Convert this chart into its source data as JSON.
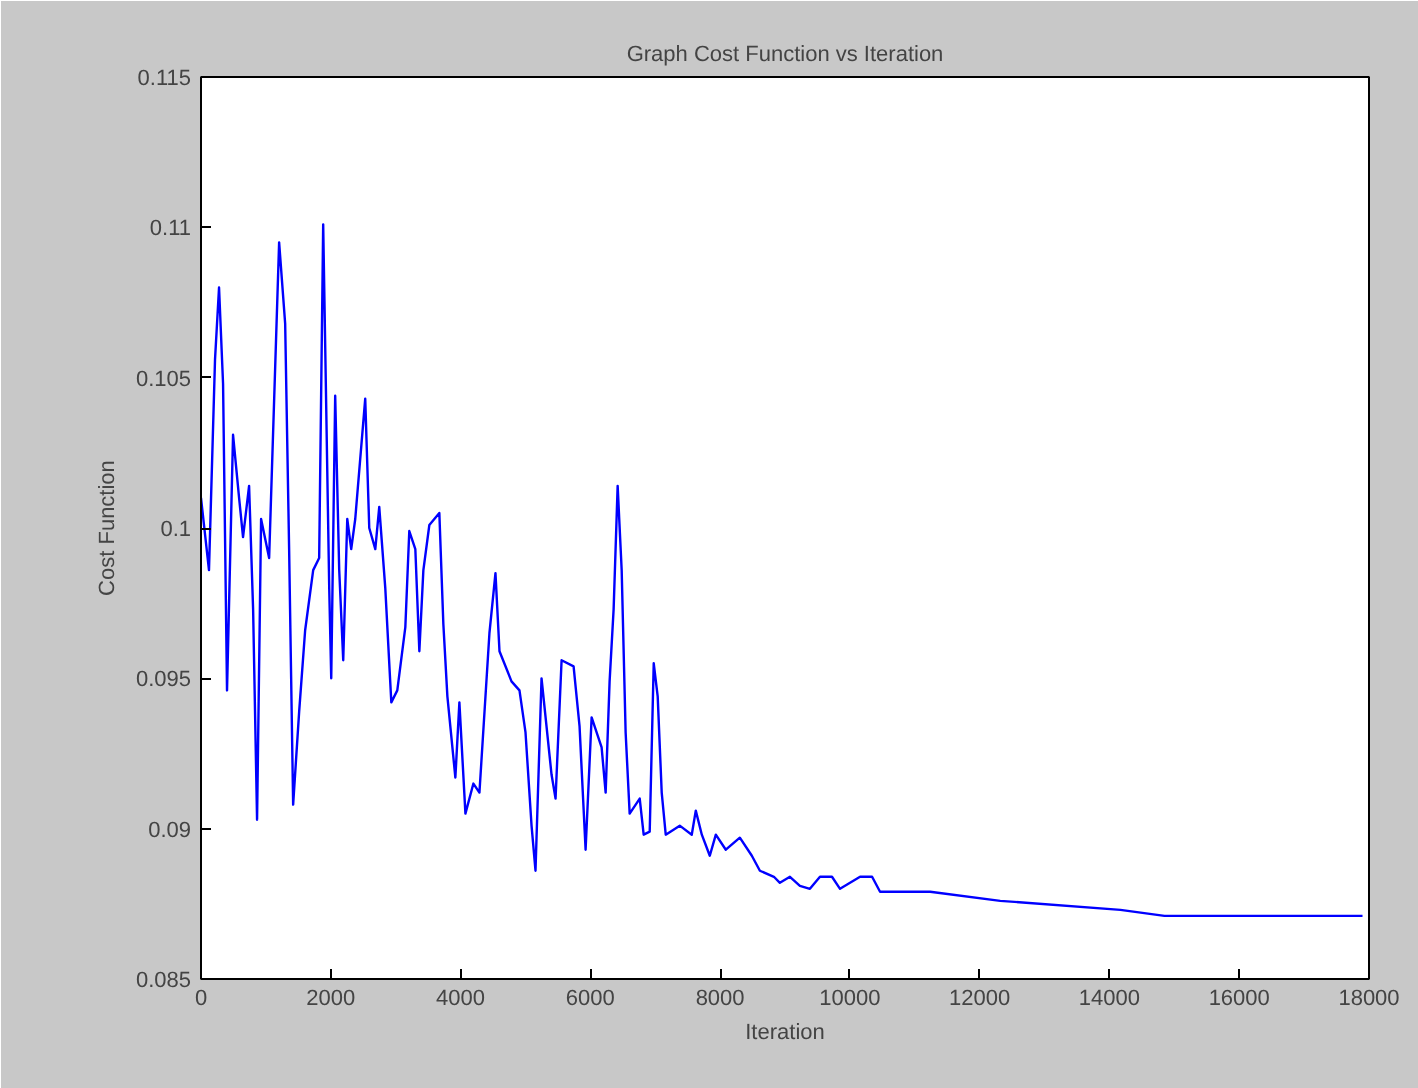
{
  "chart_data": {
    "type": "line",
    "title": "Graph Cost Function vs Iteration",
    "xlabel": "Iteration",
    "ylabel": "Cost Function",
    "xlim": [
      0,
      18000
    ],
    "xticks": [
      0,
      2000,
      4000,
      6000,
      8000,
      10000,
      12000,
      14000,
      16000,
      18000
    ],
    "ylim": [
      0.085,
      0.115
    ],
    "yticks": [
      0.085,
      0.09,
      0.095,
      0.1,
      0.105,
      0.11,
      0.115
    ],
    "grid": false,
    "marker": "none",
    "line_style": "solid",
    "series": [
      {
        "color": "#0000ff",
        "x": [
          0,
          123,
          216,
          278,
          340,
          401,
          494,
          587,
          648,
          741,
          803,
          864,
          926,
          1050,
          1204,
          1297,
          1358,
          1420,
          1513,
          1605,
          1729,
          1821,
          1883,
          1976,
          2007,
          2068,
          2130,
          2192,
          2254,
          2315,
          2377,
          2531,
          2593,
          2686,
          2747,
          2840,
          2933,
          3025,
          3149,
          3210,
          3303,
          3365,
          3427,
          3519,
          3673,
          3735,
          3797,
          3920,
          3982,
          4075,
          4198,
          4291,
          4445,
          4538,
          4600,
          4785,
          4908,
          5001,
          5094,
          5155,
          5248,
          5402,
          5464,
          5557,
          5742,
          5834,
          5927,
          6020,
          6174,
          6236,
          6297,
          6359,
          6421,
          6483,
          6544,
          6606,
          6761,
          6822,
          6915,
          6977,
          7038,
          7100,
          7162,
          7378,
          7563,
          7625,
          7718,
          7841,
          7934,
          8088,
          8304,
          8489,
          8613,
          8829,
          8921,
          9076,
          9230,
          9384,
          9539,
          9724,
          9848,
          10157,
          10342,
          10465,
          11237,
          12317,
          14169,
          14848,
          17900
        ],
        "values": [
          0.101,
          0.0986,
          0.1056,
          0.108,
          0.1048,
          0.0946,
          0.1031,
          0.101,
          0.0997,
          0.1014,
          0.0973,
          0.0903,
          0.1003,
          0.099,
          0.1095,
          0.1068,
          0.0993,
          0.0908,
          0.0939,
          0.0966,
          0.0986,
          0.099,
          0.1101,
          0.098,
          0.095,
          0.1044,
          0.0986,
          0.0956,
          0.1003,
          0.0993,
          0.1003,
          0.1043,
          0.1,
          0.0993,
          0.1007,
          0.098,
          0.0942,
          0.0946,
          0.0967,
          0.0999,
          0.0993,
          0.0959,
          0.0986,
          0.1001,
          0.1005,
          0.0968,
          0.0944,
          0.0917,
          0.0942,
          0.0905,
          0.0915,
          0.0912,
          0.0965,
          0.0985,
          0.0959,
          0.0949,
          0.0946,
          0.0932,
          0.0901,
          0.0886,
          0.095,
          0.0918,
          0.091,
          0.0956,
          0.0954,
          0.0934,
          0.0893,
          0.0937,
          0.0927,
          0.0912,
          0.0949,
          0.0973,
          0.1014,
          0.0986,
          0.0932,
          0.0905,
          0.091,
          0.0898,
          0.0899,
          0.0955,
          0.0944,
          0.0912,
          0.0898,
          0.0901,
          0.0898,
          0.0906,
          0.0898,
          0.0891,
          0.0898,
          0.0893,
          0.0897,
          0.0891,
          0.0886,
          0.0884,
          0.0882,
          0.0884,
          0.0881,
          0.088,
          0.0884,
          0.0884,
          0.088,
          0.0884,
          0.0884,
          0.0879,
          0.0879,
          0.0876,
          0.0873,
          0.0871,
          0.0871
        ]
      }
    ]
  }
}
